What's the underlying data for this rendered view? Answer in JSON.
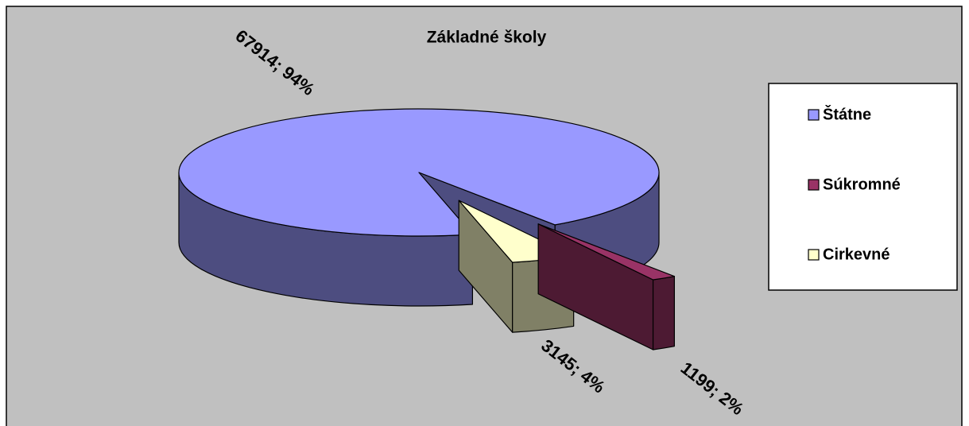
{
  "chart_data": {
    "type": "pie3d",
    "title": "Základné školy",
    "categories": [
      "Štátne",
      "Súkromné",
      "Cirkevné"
    ],
    "values": [
      67914,
      1199,
      3145
    ],
    "value_labels": [
      "67914; 94%",
      "1199; 2%",
      "3145; 4%"
    ],
    "colors": [
      "#9999ff",
      "#993366",
      "#ffffcc"
    ],
    "legend": "right"
  }
}
